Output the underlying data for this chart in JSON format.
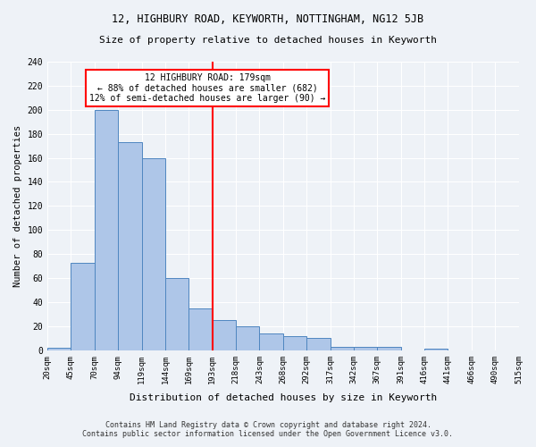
{
  "title1": "12, HIGHBURY ROAD, KEYWORTH, NOTTINGHAM, NG12 5JB",
  "title2": "Size of property relative to detached houses in Keyworth",
  "xlabel": "Distribution of detached houses by size in Keyworth",
  "ylabel": "Number of detached properties",
  "tick_labels": [
    "20sqm",
    "45sqm",
    "70sqm",
    "94sqm",
    "119sqm",
    "144sqm",
    "169sqm",
    "193sqm",
    "218sqm",
    "243sqm",
    "268sqm",
    "292sqm",
    "317sqm",
    "342sqm",
    "367sqm",
    "391sqm",
    "416sqm",
    "441sqm",
    "466sqm",
    "490sqm",
    "515sqm"
  ],
  "values": [
    2,
    73,
    200,
    173,
    160,
    60,
    35,
    25,
    20,
    14,
    12,
    10,
    3,
    3,
    3,
    0,
    1,
    0,
    0,
    0
  ],
  "bar_color": "#aec6e8",
  "bar_edge_color": "#4f86c0",
  "annotation_line1": "12 HIGHBURY ROAD: 179sqm",
  "annotation_line2": "← 88% of detached houses are smaller (682)",
  "annotation_line3": "12% of semi-detached houses are larger (90) →",
  "annotation_box_color": "white",
  "annotation_box_edge": "red",
  "vline_color": "red",
  "background_color": "#eef2f7",
  "plot_bg_color": "#eef2f7",
  "footer1": "Contains HM Land Registry data © Crown copyright and database right 2024.",
  "footer2": "Contains public sector information licensed under the Open Government Licence v3.0.",
  "ylim": [
    0,
    240
  ],
  "yticks": [
    0,
    20,
    40,
    60,
    80,
    100,
    120,
    140,
    160,
    180,
    200,
    220,
    240
  ]
}
